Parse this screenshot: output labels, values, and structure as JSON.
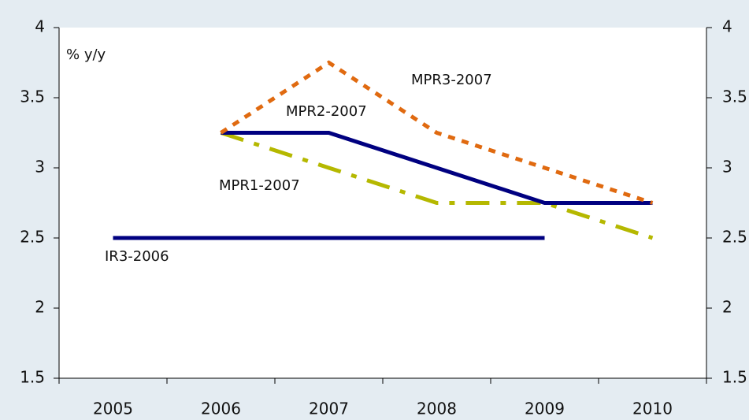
{
  "chart_data": {
    "type": "line",
    "y_label": "% y/y",
    "categories": [
      "2005",
      "2006",
      "2007",
      "2008",
      "2009",
      "2010"
    ],
    "series": [
      {
        "name": "IR3-2006",
        "color": "#000080",
        "style": "solid",
        "values": [
          2.5,
          2.5,
          2.5,
          2.5,
          2.5,
          null
        ]
      },
      {
        "name": "MPR1-2007",
        "color": "#b5b800",
        "style": "dashdot",
        "values": [
          null,
          3.25,
          3.0,
          2.75,
          2.75,
          2.5
        ]
      },
      {
        "name": "MPR2-2007",
        "color": "#000080",
        "style": "solid",
        "values": [
          null,
          3.25,
          3.25,
          3.0,
          2.75,
          2.75
        ]
      },
      {
        "name": "MPR3-2007",
        "color": "#e06a10",
        "style": "dotted",
        "values": [
          null,
          3.25,
          3.75,
          3.25,
          3.0,
          2.75
        ]
      }
    ],
    "ylim": [
      1.5,
      4
    ],
    "yticks": [
      1.5,
      2,
      2.5,
      3,
      3.5,
      4
    ],
    "y2lim": [
      1.5,
      4
    ],
    "y2ticks": [
      1.5,
      2,
      2.5,
      3,
      3.5,
      4
    ]
  }
}
